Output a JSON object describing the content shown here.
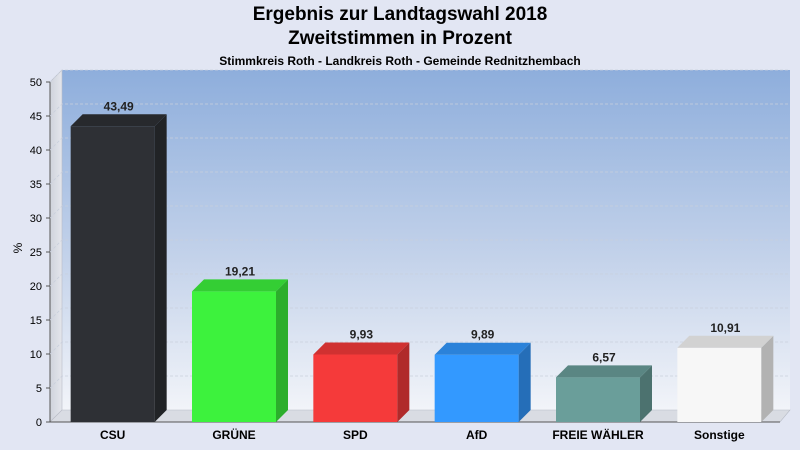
{
  "header": {
    "title": "Ergebnis zur Landtagswahl 2018",
    "subtitle": "Zweitstimmen in Prozent",
    "region": "Stimmkreis Roth - Landkreis Roth - Gemeinde Rednitzhembach"
  },
  "chart_data": {
    "type": "bar",
    "title": "Ergebnis zur Landtagswahl 2018",
    "subtitle": "Zweitstimmen in Prozent",
    "xlabel": "",
    "ylabel": "%",
    "ylim": [
      0,
      50
    ],
    "yticks": [
      0,
      5,
      10,
      15,
      20,
      25,
      30,
      35,
      40,
      45,
      50
    ],
    "grid": true,
    "categories": [
      "CSU",
      "GRÜNE",
      "SPD",
      "AfD",
      "FREIE WÄHLER",
      "Sonstige"
    ],
    "values": [
      43.49,
      19.21,
      9.93,
      9.89,
      6.57,
      10.91
    ],
    "value_labels": [
      "43,49",
      "19,21",
      "9,93",
      "9,89",
      "6,57",
      "10,91"
    ],
    "colors": [
      "#2e3035",
      "#3df23d",
      "#f53a3a",
      "#3399ff",
      "#6a9e9a",
      "#f7f7f7"
    ]
  }
}
